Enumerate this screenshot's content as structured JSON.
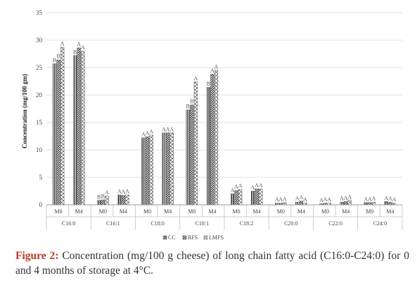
{
  "chart_data": {
    "type": "bar",
    "ylabel": "Concentration (mg/100 gm)",
    "ylim": [
      0,
      35
    ],
    "yticks": [
      0,
      5,
      10,
      15,
      20,
      25,
      30,
      35
    ],
    "grid": "horizontal",
    "legend_position": "bottom",
    "groups": [
      "C16:0",
      "C16:1",
      "C18:0",
      "C18:1",
      "C18:2",
      "C20:0",
      "C22:0",
      "C24:0"
    ],
    "subcategories": [
      "M0",
      "M4"
    ],
    "series": [
      {
        "name": "CC",
        "values": [
          [
            25.7,
            27.2
          ],
          [
            0.8,
            1.8
          ],
          [
            12.2,
            13.1
          ],
          [
            17.3,
            21.4
          ],
          [
            2.0,
            2.5
          ],
          [
            0.3,
            0.5
          ],
          [
            0.2,
            0.5
          ],
          [
            0.4,
            0.6
          ]
        ],
        "labels": [
          [
            "B",
            "B"
          ],
          [
            "B",
            "A"
          ],
          [
            "A",
            "A"
          ],
          [
            "B",
            "B"
          ],
          [
            "A",
            "A"
          ],
          [
            "A",
            "A"
          ],
          [
            "A",
            "A"
          ],
          [
            "A",
            "A"
          ]
        ]
      },
      {
        "name": "RFS",
        "values": [
          [
            26.4,
            28.6
          ],
          [
            0.9,
            1.7
          ],
          [
            12.4,
            13.1
          ],
          [
            18.2,
            23.8
          ],
          [
            2.6,
            2.9
          ],
          [
            0.3,
            0.7
          ],
          [
            0.3,
            0.6
          ],
          [
            0.4,
            0.5
          ]
        ],
        "labels": [
          [
            "B",
            "A"
          ],
          [
            "B",
            "A"
          ],
          [
            "A",
            "A"
          ],
          [
            "B",
            "A"
          ],
          [
            "A",
            "A"
          ],
          [
            "A",
            "A"
          ],
          [
            "A",
            "A"
          ],
          [
            "A",
            "A"
          ]
        ]
      },
      {
        "name": "LMFS",
        "values": [
          [
            28.7,
            28.0
          ],
          [
            1.6,
            1.8
          ],
          [
            12.7,
            13.1
          ],
          [
            22.4,
            24.5
          ],
          [
            2.8,
            2.9
          ],
          [
            0.4,
            0.3
          ],
          [
            0.3,
            0.8
          ],
          [
            0.5,
            0.3
          ]
        ],
        "labels": [
          [
            "A",
            "A"
          ],
          [
            "A",
            "A"
          ],
          [
            "A",
            "A"
          ],
          [
            "A",
            "A"
          ],
          [
            "A",
            "A"
          ],
          [
            "A",
            "A"
          ],
          [
            "A",
            "A"
          ],
          [
            "A",
            "A"
          ]
        ]
      }
    ]
  },
  "colors": {
    "axis": "#bfbfbf",
    "bar_stroke": "#333333",
    "caption_label": "#c0392b"
  },
  "caption": {
    "label": "Figure 2:",
    "text": " Concentration (mg/100 g cheese) of long chain fatty acid (C16:0-C24:0) for 0 and 4 months of storage at 4°C."
  }
}
